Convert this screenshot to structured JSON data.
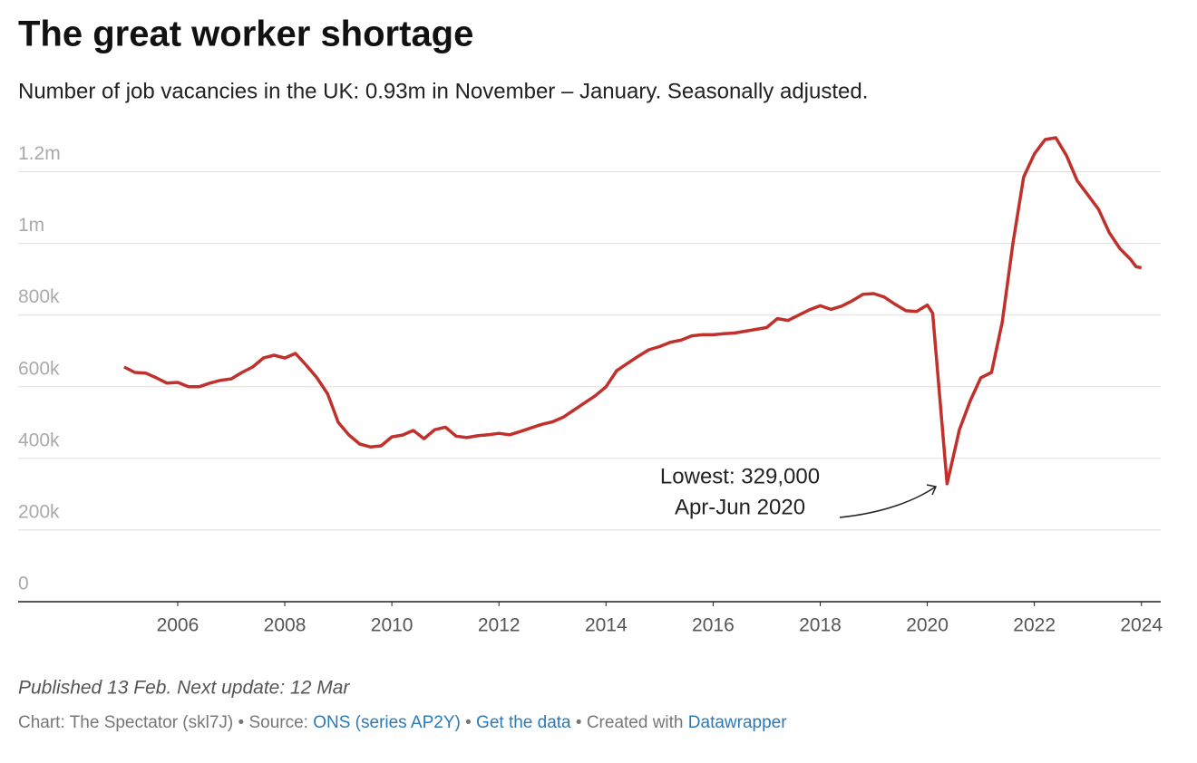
{
  "chart_data": {
    "type": "line",
    "title": "The great worker shortage",
    "subtitle": "Number of job vacancies in the UK: 0.93m in November – January. Seasonally adjusted.",
    "x": [
      2005.0,
      2005.2,
      2005.4,
      2005.6,
      2005.8,
      2006.0,
      2006.2,
      2006.4,
      2006.6,
      2006.8,
      2007.0,
      2007.2,
      2007.4,
      2007.6,
      2007.8,
      2008.0,
      2008.2,
      2008.4,
      2008.6,
      2008.8,
      2009.0,
      2009.2,
      2009.4,
      2009.6,
      2009.8,
      2010.0,
      2010.2,
      2010.4,
      2010.6,
      2010.8,
      2011.0,
      2011.2,
      2011.4,
      2011.6,
      2011.8,
      2012.0,
      2012.2,
      2012.4,
      2012.6,
      2012.8,
      2013.0,
      2013.2,
      2013.4,
      2013.6,
      2013.8,
      2014.0,
      2014.2,
      2014.4,
      2014.6,
      2014.8,
      2015.0,
      2015.2,
      2015.4,
      2015.6,
      2015.8,
      2016.0,
      2016.2,
      2016.4,
      2016.6,
      2016.8,
      2017.0,
      2017.2,
      2017.4,
      2017.6,
      2017.8,
      2018.0,
      2018.2,
      2018.4,
      2018.6,
      2018.8,
      2019.0,
      2019.2,
      2019.4,
      2019.6,
      2019.8,
      2020.0,
      2020.1,
      2020.37,
      2020.6,
      2020.8,
      2021.0,
      2021.2,
      2021.4,
      2021.6,
      2021.8,
      2022.0,
      2022.2,
      2022.4,
      2022.6,
      2022.8,
      2023.0,
      2023.2,
      2023.4,
      2023.6,
      2023.8,
      2023.9,
      2024.0
    ],
    "series": [
      {
        "name": "Job vacancies",
        "color": "#c0312b",
        "values": [
          655000,
          640000,
          638000,
          625000,
          610000,
          612000,
          600000,
          600000,
          610000,
          618000,
          622000,
          640000,
          655000,
          680000,
          688000,
          680000,
          693000,
          660000,
          625000,
          580000,
          500000,
          465000,
          440000,
          432000,
          435000,
          460000,
          465000,
          478000,
          455000,
          480000,
          487000,
          462000,
          458000,
          463000,
          466000,
          470000,
          466000,
          475000,
          485000,
          495000,
          502000,
          515000,
          535000,
          555000,
          575000,
          600000,
          645000,
          665000,
          685000,
          703000,
          712000,
          724000,
          730000,
          742000,
          745000,
          745000,
          748000,
          750000,
          755000,
          760000,
          765000,
          790000,
          785000,
          800000,
          815000,
          826000,
          816000,
          825000,
          840000,
          858000,
          860000,
          850000,
          830000,
          812000,
          810000,
          828000,
          805000,
          329000,
          480000,
          560000,
          625000,
          640000,
          780000,
          1000000,
          1185000,
          1250000,
          1290000,
          1295000,
          1245000,
          1175000,
          1135000,
          1095000,
          1030000,
          985000,
          955000,
          935000,
          932000
        ]
      }
    ],
    "xlim": [
      2003.02,
      2024.36
    ],
    "xticks": [
      2006,
      2008,
      2010,
      2012,
      2014,
      2016,
      2018,
      2020,
      2022,
      2024
    ],
    "ylim": [
      0,
      1300000
    ],
    "yticks": [
      0,
      {
        "value": 200000,
        "label": "200k"
      },
      {
        "value": 400000,
        "label": "400k"
      },
      {
        "value": 600000,
        "label": "600k"
      },
      {
        "value": 800000,
        "label": "800k"
      },
      {
        "value": 1000000,
        "label": "1m"
      },
      {
        "value": 1200000,
        "label": "1.2m"
      }
    ],
    "grid": true,
    "annotation": [
      "Lowest: 329,000",
      "Apr-Jun 2020"
    ],
    "notes": "Published 13 Feb. Next update: 12 Mar",
    "footer": [
      {
        "text": "Chart: The Spectator (skl7J)",
        "link": false
      },
      {
        "text": " • Source: ",
        "link": false
      },
      {
        "text": "ONS (series AP2Y)",
        "link": true
      },
      {
        "text": " • ",
        "link": false
      },
      {
        "text": "Get the data",
        "link": true
      },
      {
        "text": " • Created with ",
        "link": false
      },
      {
        "text": "Datawrapper",
        "link": true
      }
    ]
  }
}
